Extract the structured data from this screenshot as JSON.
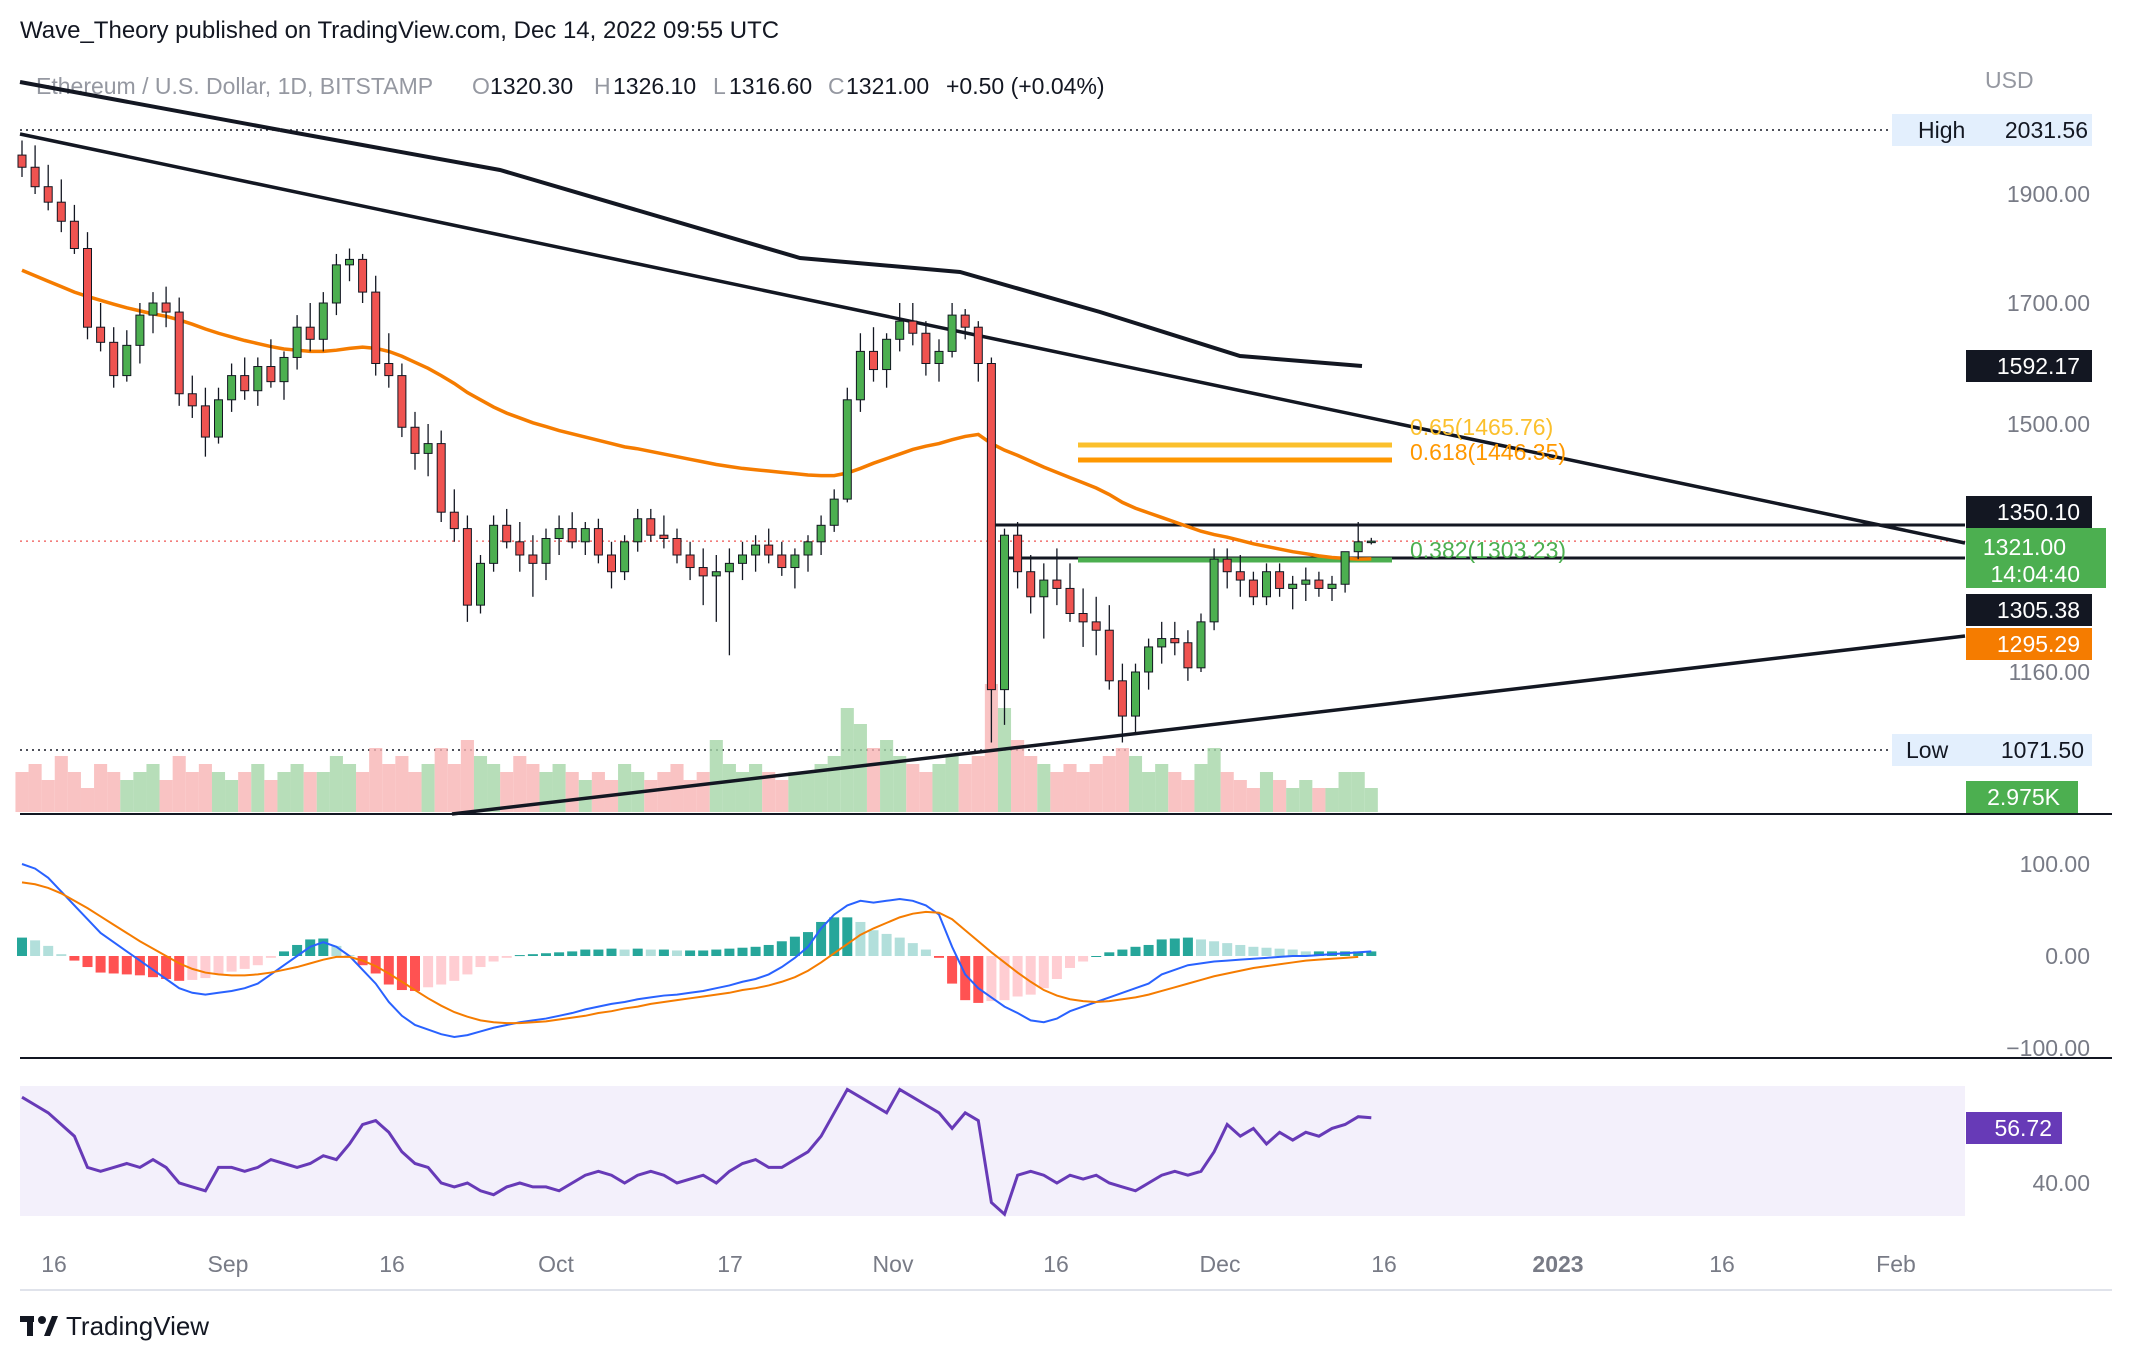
{
  "publisher_line": "Wave_Theory published on TradingView.com, Dec 14, 2022 09:55 UTC",
  "brand": "TradingView",
  "colors": {
    "up": "#26a69a",
    "down": "#ef5350",
    "candle_up": "#4caf50",
    "candle_down": "#ef5350",
    "ema": "#f57c00",
    "macd": "#2962ff",
    "signal": "#f57c00",
    "rsi": "#673ab7",
    "fib_382": "#4caf50",
    "fib_618": "#ff9800",
    "fib_65": "#fbc02d"
  },
  "header": {
    "symbol": "Ethereum / U.S. Dollar, 1D, BITSTAMP",
    "open_label": "O",
    "open": "1320.30",
    "high_label": "H",
    "high": "1326.10",
    "low_label": "L",
    "low": "1316.60",
    "close_label": "C",
    "close": "1321.00",
    "change": "+0.50 (+0.04%)"
  },
  "chart_data": [
    {
      "type": "candlestick",
      "currency": "USD",
      "y_ticks": [
        1160,
        1500,
        1700,
        1900
      ],
      "y_tick_labels": [
        "1160.00",
        "1500.00",
        "1700.00",
        "1900.00"
      ],
      "x_ticks": [
        "16",
        "Sep",
        "16",
        "Oct",
        "17",
        "Nov",
        "16",
        "Dec",
        "16",
        "2023",
        "16",
        "Feb"
      ],
      "high_marker": {
        "label": "High",
        "value": "2031.56"
      },
      "low_marker": {
        "label": "Low",
        "value": "1071.50"
      },
      "price_labels": [
        {
          "value": "1592.17",
          "color": "#131722"
        },
        {
          "value": "1350.10",
          "color": "#131722"
        },
        {
          "value": "1321.00",
          "color": "#4caf50"
        },
        {
          "value": "1305.38",
          "color": "#131722"
        },
        {
          "value": "1295.29",
          "color": "#f57c00"
        }
      ],
      "countdown": "14:04:40",
      "fib_levels": [
        {
          "ratio": "0.65",
          "value": "1465.76",
          "label": "0.65(1465.76)",
          "color": "#fbc02d"
        },
        {
          "ratio": "0.618",
          "value": "1446.35",
          "label": "0.618(1446.35)",
          "color": "#ff9800"
        },
        {
          "ratio": "0.382",
          "value": "1303.23",
          "label": "0.382(1303.23)",
          "color": "#4caf50"
        }
      ],
      "ema_last": 1295.29,
      "volume_label": "2.975K",
      "candles": [
        [
          1980,
          2010,
          1935,
          1955
        ],
        [
          1955,
          2000,
          1900,
          1915
        ],
        [
          1915,
          1960,
          1870,
          1885
        ],
        [
          1885,
          1930,
          1830,
          1850
        ],
        [
          1850,
          1880,
          1790,
          1800
        ],
        [
          1800,
          1830,
          1640,
          1660
        ],
        [
          1660,
          1700,
          1620,
          1635
        ],
        [
          1635,
          1660,
          1560,
          1580
        ],
        [
          1580,
          1655,
          1570,
          1630
        ],
        [
          1630,
          1700,
          1600,
          1680
        ],
        [
          1680,
          1720,
          1650,
          1700
        ],
        [
          1700,
          1730,
          1660,
          1685
        ],
        [
          1685,
          1710,
          1530,
          1550
        ],
        [
          1550,
          1580,
          1510,
          1530
        ],
        [
          1530,
          1560,
          1450,
          1480
        ],
        [
          1480,
          1560,
          1470,
          1540
        ],
        [
          1540,
          1600,
          1520,
          1580
        ],
        [
          1580,
          1610,
          1540,
          1555
        ],
        [
          1555,
          1610,
          1530,
          1595
        ],
        [
          1595,
          1640,
          1560,
          1570
        ],
        [
          1570,
          1620,
          1540,
          1610
        ],
        [
          1610,
          1680,
          1590,
          1660
        ],
        [
          1660,
          1700,
          1620,
          1640
        ],
        [
          1640,
          1720,
          1620,
          1700
        ],
        [
          1700,
          1790,
          1680,
          1770
        ],
        [
          1770,
          1800,
          1740,
          1780
        ],
        [
          1780,
          1790,
          1700,
          1720
        ],
        [
          1720,
          1750,
          1580,
          1600
        ],
        [
          1600,
          1650,
          1560,
          1580
        ],
        [
          1580,
          1600,
          1480,
          1495
        ],
        [
          1495,
          1520,
          1430,
          1455
        ],
        [
          1455,
          1500,
          1420,
          1470
        ],
        [
          1470,
          1490,
          1350,
          1365
        ],
        [
          1365,
          1400,
          1320,
          1340
        ],
        [
          1340,
          1360,
          1220,
          1240
        ],
        [
          1240,
          1300,
          1230,
          1290
        ],
        [
          1290,
          1360,
          1280,
          1345
        ],
        [
          1345,
          1370,
          1310,
          1320
        ],
        [
          1320,
          1350,
          1280,
          1300
        ],
        [
          1300,
          1330,
          1250,
          1290
        ],
        [
          1290,
          1340,
          1270,
          1325
        ],
        [
          1325,
          1360,
          1300,
          1340
        ],
        [
          1340,
          1365,
          1310,
          1320
        ],
        [
          1320,
          1350,
          1300,
          1340
        ],
        [
          1340,
          1355,
          1290,
          1300
        ],
        [
          1300,
          1320,
          1260,
          1280
        ],
        [
          1280,
          1330,
          1270,
          1320
        ],
        [
          1320,
          1370,
          1305,
          1355
        ],
        [
          1355,
          1370,
          1320,
          1330
        ],
        [
          1330,
          1360,
          1310,
          1325
        ],
        [
          1325,
          1340,
          1290,
          1300
        ],
        [
          1300,
          1320,
          1270,
          1285
        ],
        [
          1285,
          1310,
          1240,
          1275
        ],
        [
          1275,
          1300,
          1220,
          1280
        ],
        [
          1280,
          1310,
          1180,
          1290
        ],
        [
          1290,
          1320,
          1270,
          1300
        ],
        [
          1300,
          1330,
          1280,
          1315
        ],
        [
          1315,
          1340,
          1290,
          1300
        ],
        [
          1300,
          1320,
          1275,
          1285
        ],
        [
          1285,
          1310,
          1260,
          1300
        ],
        [
          1300,
          1330,
          1280,
          1320
        ],
        [
          1320,
          1360,
          1300,
          1345
        ],
        [
          1345,
          1400,
          1335,
          1385
        ],
        [
          1385,
          1560,
          1380,
          1540
        ],
        [
          1540,
          1650,
          1520,
          1620
        ],
        [
          1620,
          1660,
          1570,
          1590
        ],
        [
          1590,
          1650,
          1560,
          1640
        ],
        [
          1640,
          1700,
          1620,
          1670
        ],
        [
          1670,
          1700,
          1630,
          1650
        ],
        [
          1650,
          1670,
          1580,
          1600
        ],
        [
          1600,
          1640,
          1570,
          1620
        ],
        [
          1620,
          1700,
          1610,
          1680
        ],
        [
          1680,
          1690,
          1640,
          1660
        ],
        [
          1660,
          1670,
          1570,
          1600
        ],
        [
          1600,
          1610,
          1080,
          1140
        ],
        [
          1140,
          1340,
          1100,
          1330
        ],
        [
          1330,
          1350,
          1260,
          1280
        ],
        [
          1280,
          1300,
          1230,
          1250
        ],
        [
          1250,
          1290,
          1200,
          1270
        ],
        [
          1270,
          1310,
          1240,
          1260
        ],
        [
          1260,
          1290,
          1220,
          1230
        ],
        [
          1230,
          1260,
          1190,
          1220
        ],
        [
          1220,
          1250,
          1180,
          1210
        ],
        [
          1210,
          1240,
          1140,
          1150
        ],
        [
          1150,
          1170,
          1080,
          1110
        ],
        [
          1110,
          1170,
          1090,
          1160
        ],
        [
          1160,
          1200,
          1140,
          1190
        ],
        [
          1190,
          1220,
          1170,
          1200
        ],
        [
          1200,
          1220,
          1180,
          1195
        ],
        [
          1195,
          1210,
          1150,
          1165
        ],
        [
          1165,
          1230,
          1160,
          1220
        ],
        [
          1220,
          1310,
          1210,
          1295
        ],
        [
          1295,
          1310,
          1260,
          1280
        ],
        [
          1280,
          1300,
          1250,
          1270
        ],
        [
          1270,
          1280,
          1240,
          1250
        ],
        [
          1250,
          1290,
          1240,
          1280
        ],
        [
          1280,
          1290,
          1250,
          1260
        ],
        [
          1260,
          1275,
          1235,
          1265
        ],
        [
          1265,
          1285,
          1245,
          1270
        ],
        [
          1270,
          1280,
          1250,
          1260
        ],
        [
          1260,
          1275,
          1245,
          1265
        ],
        [
          1265,
          1300,
          1255,
          1305
        ],
        [
          1305,
          1350,
          1295,
          1320
        ],
        [
          1320,
          1326,
          1316,
          1321
        ]
      ],
      "ema": [
        1760,
        1750,
        1740,
        1730,
        1720,
        1712,
        1705,
        1698,
        1692,
        1687,
        1682,
        1678,
        1672,
        1665,
        1657,
        1650,
        1644,
        1638,
        1633,
        1628,
        1624,
        1622,
        1620,
        1620,
        1622,
        1625,
        1627,
        1625,
        1620,
        1612,
        1602,
        1592,
        1580,
        1567,
        1552,
        1540,
        1528,
        1518,
        1510,
        1502,
        1496,
        1490,
        1485,
        1480,
        1475,
        1470,
        1465,
        1462,
        1458,
        1454,
        1450,
        1446,
        1442,
        1438,
        1435,
        1432,
        1430,
        1428,
        1426,
        1424,
        1422,
        1421,
        1421,
        1425,
        1432,
        1440,
        1447,
        1454,
        1461,
        1466,
        1470,
        1476,
        1481,
        1484,
        1470,
        1460,
        1452,
        1443,
        1434,
        1426,
        1418,
        1410,
        1402,
        1392,
        1380,
        1371,
        1364,
        1357,
        1350,
        1343,
        1336,
        1331,
        1327,
        1322,
        1317,
        1313,
        1309,
        1305,
        1302,
        1299,
        1297,
        1296,
        1295,
        1295.29
      ],
      "volume": [
        0.5,
        0.6,
        0.4,
        0.7,
        0.5,
        0.3,
        0.6,
        0.5,
        0.4,
        0.5,
        0.6,
        0.4,
        0.7,
        0.5,
        0.6,
        0.5,
        0.4,
        0.5,
        0.6,
        0.4,
        0.5,
        0.6,
        0.5,
        0.5,
        0.7,
        0.6,
        0.5,
        0.8,
        0.6,
        0.7,
        0.5,
        0.6,
        0.8,
        0.6,
        0.9,
        0.7,
        0.6,
        0.5,
        0.7,
        0.6,
        0.5,
        0.6,
        0.5,
        0.4,
        0.5,
        0.4,
        0.6,
        0.5,
        0.4,
        0.5,
        0.6,
        0.4,
        0.5,
        0.9,
        0.6,
        0.5,
        0.6,
        0.5,
        0.4,
        0.5,
        0.5,
        0.6,
        0.7,
        1.3,
        1.1,
        0.8,
        0.9,
        0.7,
        0.6,
        0.5,
        0.6,
        0.7,
        0.6,
        0.7,
        1.6,
        1.3,
        0.9,
        0.7,
        0.6,
        0.5,
        0.6,
        0.5,
        0.6,
        0.7,
        0.8,
        0.7,
        0.5,
        0.6,
        0.5,
        0.4,
        0.6,
        0.8,
        0.5,
        0.4,
        0.3,
        0.5,
        0.4,
        0.3,
        0.4,
        0.3,
        0.3,
        0.5,
        0.5,
        0.3
      ]
    },
    {
      "type": "line",
      "name": "MACD",
      "y_tick_labels": [
        "100.00",
        "0.00",
        "−100.00"
      ],
      "y_ticks": [
        100,
        0,
        -100
      ],
      "macd_line": [
        100,
        95,
        85,
        70,
        55,
        40,
        25,
        15,
        5,
        -5,
        -15,
        -25,
        -35,
        -40,
        -42,
        -40,
        -38,
        -35,
        -30,
        -20,
        -10,
        0,
        10,
        15,
        10,
        0,
        -15,
        -30,
        -50,
        -65,
        -75,
        -80,
        -85,
        -88,
        -86,
        -82,
        -78,
        -75,
        -72,
        -70,
        -68,
        -65,
        -62,
        -58,
        -55,
        -52,
        -50,
        -47,
        -45,
        -43,
        -42,
        -40,
        -38,
        -35,
        -32,
        -28,
        -25,
        -20,
        -12,
        -2,
        10,
        30,
        45,
        55,
        60,
        58,
        60,
        62,
        60,
        55,
        45,
        10,
        -20,
        -35,
        -45,
        -55,
        -62,
        -70,
        -72,
        -68,
        -60,
        -55,
        -50,
        -45,
        -40,
        -35,
        -30,
        -20,
        -15,
        -10,
        -8,
        -6,
        -5,
        -4,
        -3,
        -2,
        -1,
        0,
        0,
        1,
        2,
        3,
        4,
        5
      ],
      "signal_line": [
        80,
        78,
        74,
        68,
        60,
        52,
        43,
        34,
        25,
        16,
        8,
        0,
        -8,
        -14,
        -18,
        -20,
        -21,
        -21,
        -20,
        -18,
        -15,
        -12,
        -8,
        -4,
        -1,
        -1,
        -5,
        -11,
        -19,
        -28,
        -37,
        -46,
        -54,
        -61,
        -66,
        -70,
        -72,
        -73,
        -73,
        -72,
        -71,
        -69,
        -67,
        -65,
        -62,
        -60,
        -57,
        -55,
        -52,
        -50,
        -48,
        -46,
        -44,
        -42,
        -40,
        -37,
        -35,
        -32,
        -28,
        -23,
        -16,
        -7,
        3,
        13,
        23,
        30,
        36,
        42,
        46,
        48,
        47,
        40,
        28,
        16,
        4,
        -7,
        -18,
        -28,
        -37,
        -43,
        -47,
        -49,
        -50,
        -49,
        -47,
        -45,
        -42,
        -38,
        -34,
        -30,
        -26,
        -22,
        -19,
        -16,
        -13,
        -11,
        -9,
        -7,
        -5,
        -4,
        -3,
        -2,
        -1
      ]
    },
    {
      "type": "line",
      "name": "RSI",
      "y_tick_labels": [
        "40.00"
      ],
      "y_ticks": [
        40
      ],
      "last_value": "56.72",
      "values": [
        62,
        60,
        58,
        55,
        52,
        44,
        43,
        44,
        45,
        44,
        46,
        44,
        40,
        39,
        38,
        44,
        44,
        43,
        44,
        46,
        45,
        44,
        45,
        47,
        46,
        50,
        55,
        56,
        53,
        48,
        45,
        44,
        40,
        39,
        40,
        38,
        37,
        39,
        40,
        39,
        39,
        38,
        40,
        42,
        43,
        42,
        40,
        42,
        43,
        42,
        40,
        41,
        42,
        40,
        43,
        45,
        46,
        44,
        44,
        46,
        48,
        52,
        58,
        64,
        62,
        60,
        58,
        64,
        62,
        60,
        58,
        54,
        58,
        56,
        35,
        32,
        42,
        43,
        42,
        40,
        42,
        41,
        42,
        40,
        39,
        38,
        40,
        42,
        43,
        42,
        43,
        48,
        55,
        52,
        54,
        50,
        53,
        51,
        53,
        52,
        54,
        55,
        57,
        56.72
      ]
    }
  ]
}
